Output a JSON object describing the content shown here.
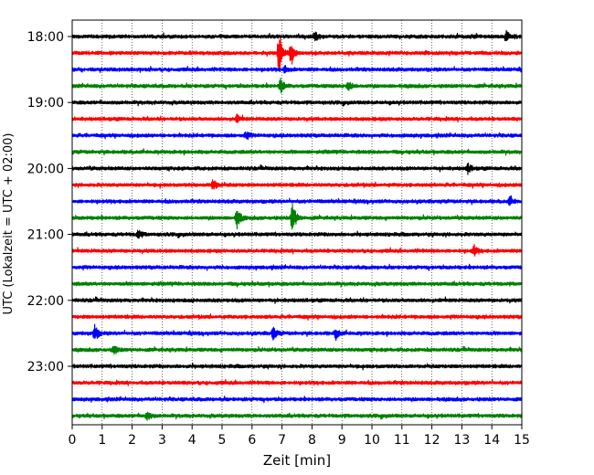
{
  "chart_data": {
    "type": "line",
    "title": "",
    "xlabel": "Zeit  [min]",
    "ylabel": "UTC (Lokalzeit = UTC + 02:00)",
    "xlim": [
      0,
      15
    ],
    "x_ticks": [
      0,
      1,
      2,
      3,
      4,
      5,
      6,
      7,
      8,
      9,
      10,
      11,
      12,
      13,
      14,
      15
    ],
    "x_tick_labels": [
      "0",
      "1",
      "2",
      "3",
      "4",
      "5",
      "6",
      "7",
      "8",
      "9",
      "10",
      "11",
      "12",
      "13",
      "14",
      "15"
    ],
    "y_tick_labels": [
      "18:00",
      "19:00",
      "20:00",
      "21:00",
      "22:00",
      "23:00"
    ],
    "y_tick_rows": [
      0,
      4,
      8,
      12,
      16,
      20
    ],
    "grid": "vertical dotted at each minute",
    "row_colors": [
      "#000000",
      "#ff0000",
      "#0000ff",
      "#008000"
    ],
    "traces": [
      {
        "start": "18:00",
        "color": "#000000",
        "events": [
          {
            "t": 8.1,
            "a": 6
          },
          {
            "t": 14.5,
            "a": 5
          }
        ]
      },
      {
        "start": "18:15",
        "color": "#ff0000",
        "events": [
          {
            "t": 6.9,
            "a": 26
          },
          {
            "t": 7.3,
            "a": 14
          }
        ]
      },
      {
        "start": "18:30",
        "color": "#0000ff",
        "events": [
          {
            "t": 7.1,
            "a": 4
          }
        ]
      },
      {
        "start": "18:45",
        "color": "#008000",
        "events": [
          {
            "t": 6.95,
            "a": 8
          },
          {
            "t": 9.2,
            "a": 6
          }
        ]
      },
      {
        "start": "19:00",
        "color": "#000000",
        "events": []
      },
      {
        "start": "19:15",
        "color": "#ff0000",
        "events": [
          {
            "t": 5.5,
            "a": 4
          }
        ]
      },
      {
        "start": "19:30",
        "color": "#0000ff",
        "events": [
          {
            "t": 5.8,
            "a": 4
          }
        ]
      },
      {
        "start": "19:45",
        "color": "#008000",
        "events": []
      },
      {
        "start": "20:00",
        "color": "#000000",
        "events": [
          {
            "t": 13.2,
            "a": 5
          }
        ]
      },
      {
        "start": "20:15",
        "color": "#ff0000",
        "events": [
          {
            "t": 4.7,
            "a": 7
          }
        ]
      },
      {
        "start": "20:30",
        "color": "#0000ff",
        "events": [
          {
            "t": 14.6,
            "a": 5
          }
        ]
      },
      {
        "start": "20:45",
        "color": "#008000",
        "events": [
          {
            "t": 5.5,
            "a": 12
          },
          {
            "t": 7.35,
            "a": 20
          }
        ]
      },
      {
        "start": "21:00",
        "color": "#000000",
        "events": [
          {
            "t": 2.2,
            "a": 5
          }
        ]
      },
      {
        "start": "21:15",
        "color": "#ff0000",
        "events": [
          {
            "t": 13.4,
            "a": 6
          }
        ]
      },
      {
        "start": "21:30",
        "color": "#0000ff",
        "events": []
      },
      {
        "start": "21:45",
        "color": "#008000",
        "events": []
      },
      {
        "start": "22:00",
        "color": "#000000",
        "events": []
      },
      {
        "start": "22:15",
        "color": "#ff0000",
        "events": []
      },
      {
        "start": "22:30",
        "color": "#0000ff",
        "events": [
          {
            "t": 0.75,
            "a": 9
          },
          {
            "t": 6.7,
            "a": 8
          },
          {
            "t": 8.8,
            "a": 6
          }
        ]
      },
      {
        "start": "22:45",
        "color": "#008000",
        "events": [
          {
            "t": 1.4,
            "a": 5
          }
        ]
      },
      {
        "start": "23:00",
        "color": "#000000",
        "events": []
      },
      {
        "start": "23:15",
        "color": "#ff0000",
        "events": []
      },
      {
        "start": "23:30",
        "color": "#0000ff",
        "events": []
      },
      {
        "start": "23:45",
        "color": "#008000",
        "events": [
          {
            "t": 2.5,
            "a": 5
          }
        ]
      }
    ]
  }
}
